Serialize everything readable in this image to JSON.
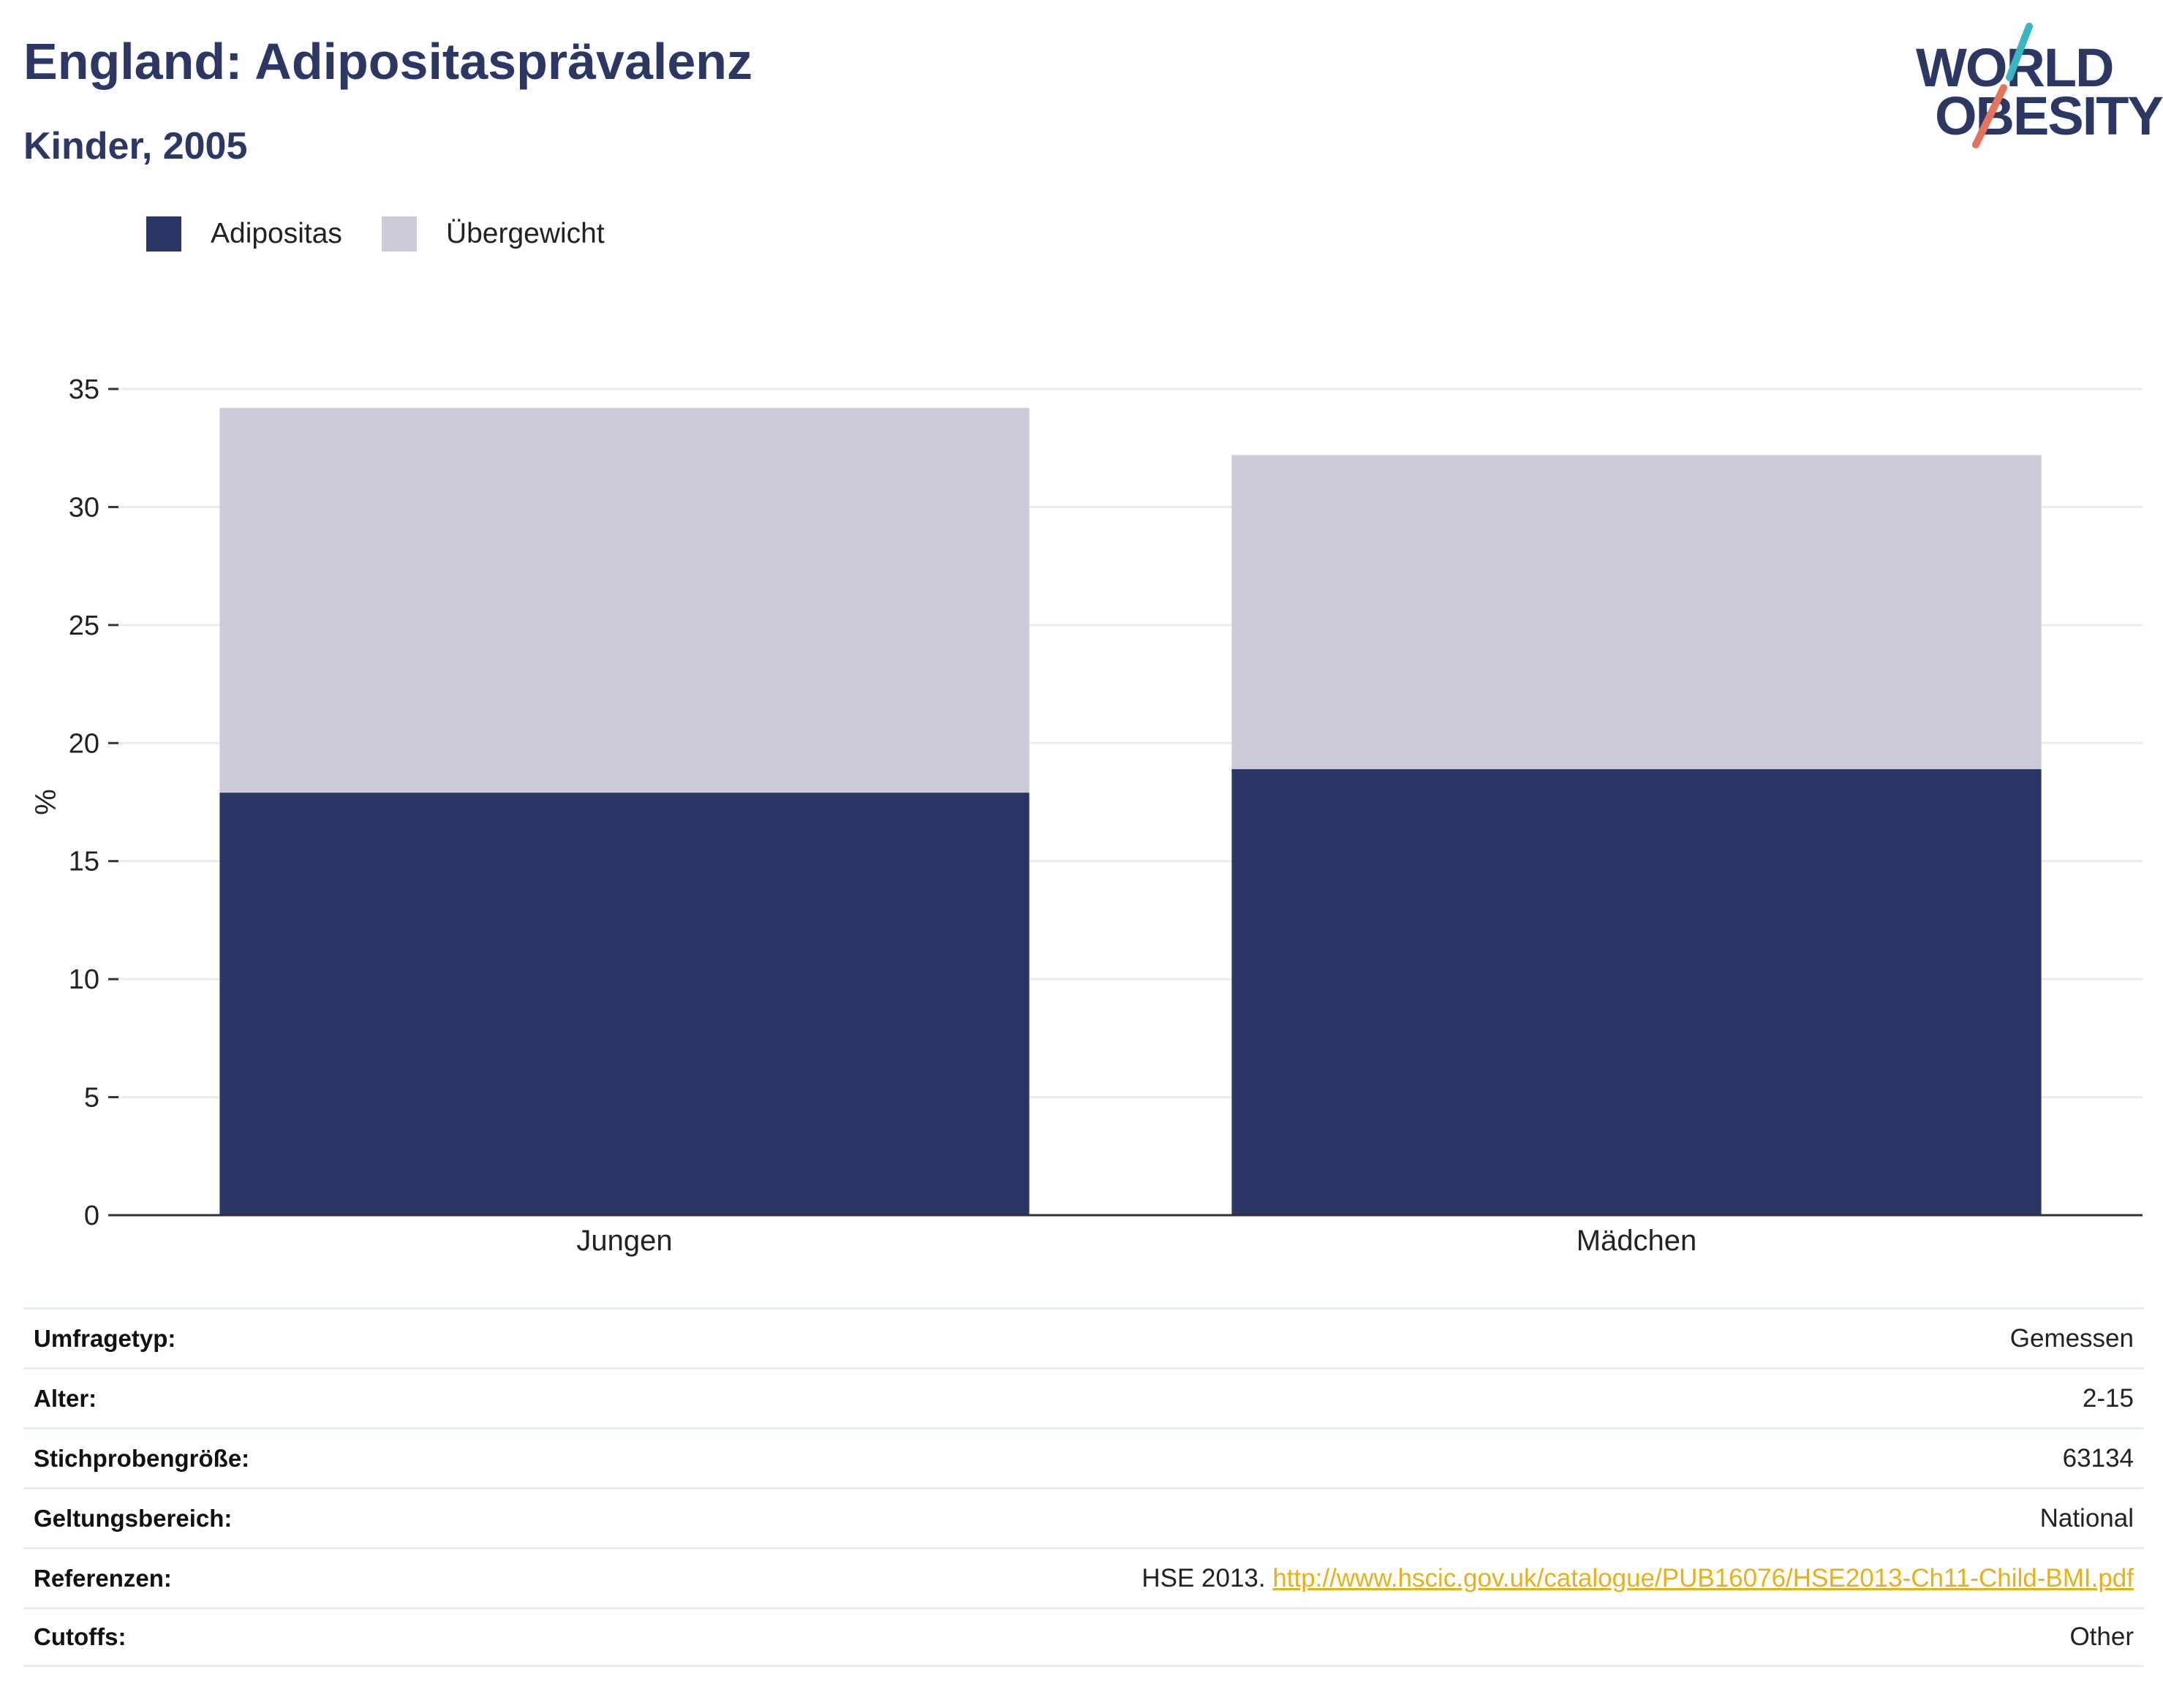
{
  "header": {
    "title": "England: Adipositasprävalenz",
    "subtitle": "Kinder, 2005"
  },
  "logo": {
    "line1": "WORLD",
    "line2": "OBESITY",
    "accent_teal": "#3bb6c1",
    "accent_coral": "#e5735e"
  },
  "legend": {
    "items": [
      {
        "label": "Adipositas",
        "color": "#2a3663"
      },
      {
        "label": "Übergewicht",
        "color": "#cbccd8"
      }
    ]
  },
  "chart_data": {
    "type": "bar",
    "stacked": true,
    "categories": [
      "Jungen",
      "Mädchen"
    ],
    "series": [
      {
        "name": "Adipositas",
        "values": [
          17.9,
          18.9
        ],
        "color": "#2a3663"
      },
      {
        "name": "Übergewicht",
        "values": [
          16.3,
          13.3
        ],
        "color": "#cbccd8"
      }
    ],
    "ylabel": "%",
    "ylim": [
      0,
      35
    ],
    "yticks": [
      0,
      5,
      10,
      15,
      20,
      25,
      30,
      35
    ],
    "grid": true,
    "legend_position": "top-left"
  },
  "meta": {
    "rows": [
      {
        "label": "Umfragetyp:",
        "value": "Gemessen"
      },
      {
        "label": "Alter:",
        "value": "2-15"
      },
      {
        "label": "Stichprobengröße:",
        "value": "63134"
      },
      {
        "label": "Geltungsbereich:",
        "value": "National"
      },
      {
        "label": "Referenzen:",
        "value": "HSE 2013. ",
        "link": "http://www.hscic.gov.uk/catalogue/PUB16076/HSE2013-Ch11-Child-BMI.pdf"
      },
      {
        "label": "Cutoffs:",
        "value": "Other"
      }
    ]
  }
}
